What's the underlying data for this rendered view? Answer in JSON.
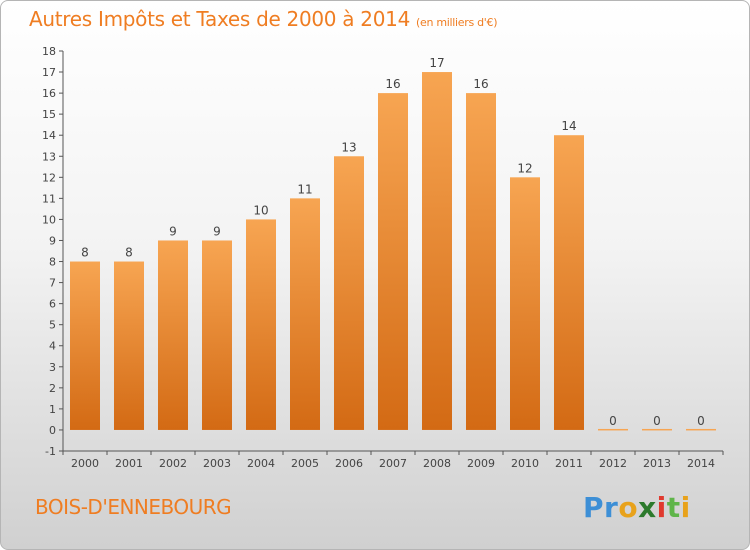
{
  "header": {
    "title": "Autres Impôts et Taxes de 2000 à 2014",
    "subtitle": "(en milliers d'€)"
  },
  "footer": {
    "place": "BOIS-D'ENNEBOURG",
    "logo": "Proxiti"
  },
  "colors": {
    "bar_top": "#f7a552",
    "bar_bottom": "#d36a14",
    "text_accent": "#ef7d22",
    "axis": "#555555"
  },
  "chart_data": {
    "type": "bar",
    "categories": [
      "2000",
      "2001",
      "2002",
      "2003",
      "2004",
      "2005",
      "2006",
      "2007",
      "2008",
      "2009",
      "2010",
      "2011",
      "2012",
      "2013",
      "2014"
    ],
    "values": [
      8,
      8,
      9,
      9,
      10,
      11,
      13,
      16,
      17,
      16,
      12,
      14,
      0,
      0,
      0
    ],
    "title": "Autres Impôts et Taxes de 2000 à 2014",
    "ylim": [
      -1,
      18
    ],
    "yticks": [
      -1,
      0,
      1,
      2,
      3,
      4,
      5,
      6,
      7,
      8,
      9,
      10,
      11,
      12,
      13,
      14,
      15,
      16,
      17,
      18
    ],
    "grid": false,
    "data_labels": true
  }
}
